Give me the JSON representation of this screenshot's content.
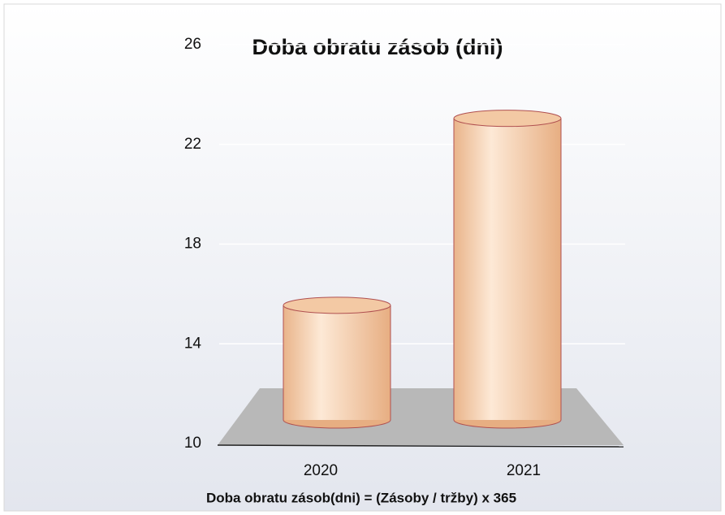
{
  "chart_data": {
    "type": "cylinder",
    "title": "Doba obratu zásob (dni)",
    "x_label": "Doba obratu zásob(dni) = (Zásoby / tržby) x 365",
    "categories": [
      "2020",
      "2021"
    ],
    "values": [
      14.6,
      22.1
    ],
    "color": "#f3c9a4",
    "ylim": [
      10,
      26
    ],
    "yticks": [
      10,
      14,
      18,
      22,
      26
    ],
    "grid": true
  }
}
